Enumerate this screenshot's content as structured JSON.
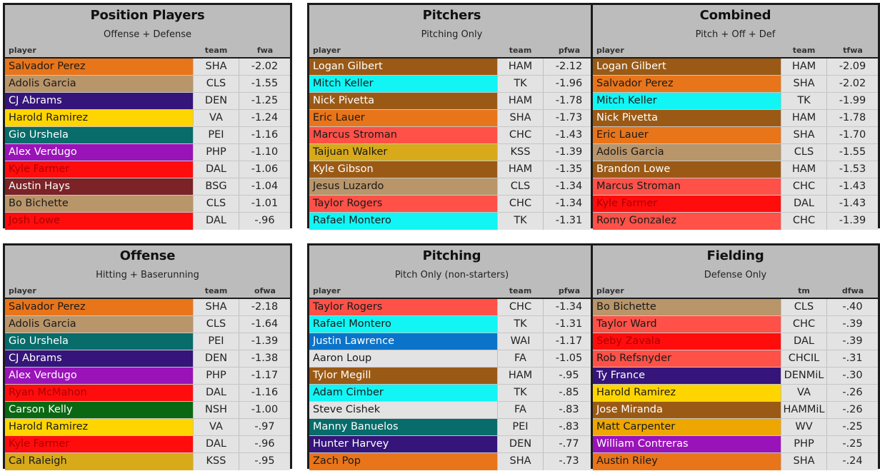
{
  "teams": {
    "SHA": {
      "bg": "#e8751a",
      "fg": "#1a1a1a"
    },
    "CLS": {
      "bg": "#b9956a",
      "fg": "#1a1a1a"
    },
    "DEN": {
      "bg": "#35157a",
      "fg": "#ffffff"
    },
    "VA": {
      "bg": "#ffd500",
      "fg": "#1a1a1a"
    },
    "PEI": {
      "bg": "#076c6a",
      "fg": "#ffffff"
    },
    "PHP": {
      "bg": "#9a13b9",
      "fg": "#ffffff"
    },
    "DAL": {
      "bg": "#ff0d0d",
      "fg": "#b00000"
    },
    "BSG": {
      "bg": "#7b2326",
      "fg": "#ffffff"
    },
    "HAM": {
      "bg": "#9a5a16",
      "fg": "#ffffff"
    },
    "TK": {
      "bg": "#11f5f5",
      "fg": "#1a1a1a"
    },
    "CHC": {
      "bg": "#ff5148",
      "fg": "#1a1a1a"
    },
    "KSS": {
      "bg": "#d8aa19",
      "fg": "#1a1a1a"
    },
    "NSH": {
      "bg": "#0b6812",
      "fg": "#ffffff"
    },
    "WAI": {
      "bg": "#0b73c9",
      "fg": "#ffffff"
    },
    "FA": {
      "bg": "#e3e3e3",
      "fg": "#1a1a1a"
    },
    "CHCIL": {
      "bg": "#ff5148",
      "fg": "#1a1a1a"
    },
    "DENMiL": {
      "bg": "#35157a",
      "fg": "#ffffff"
    },
    "HAMMiL": {
      "bg": "#9a5a16",
      "fg": "#ffffff"
    },
    "WV": {
      "bg": "#eea600",
      "fg": "#1a1a1a"
    }
  },
  "panels": [
    {
      "title": "Position Players",
      "subtitle": "Offense + Defense",
      "col_player": "player",
      "col_team": "team",
      "col_value": "fwa",
      "rows": [
        {
          "name": "Salvador Perez",
          "team": "SHA",
          "value": "-2.02"
        },
        {
          "name": "Adolis Garcia",
          "team": "CLS",
          "value": "-1.55"
        },
        {
          "name": "CJ Abrams",
          "team": "DEN",
          "value": "-1.25"
        },
        {
          "name": "Harold Ramirez",
          "team": "VA",
          "value": "-1.24"
        },
        {
          "name": "Gio Urshela",
          "team": "PEI",
          "value": "-1.16"
        },
        {
          "name": "Alex Verdugo",
          "team": "PHP",
          "value": "-1.10"
        },
        {
          "name": "Kyle Farmer",
          "team": "DAL",
          "value": "-1.06"
        },
        {
          "name": "Austin Hays",
          "team": "BSG",
          "value": "-1.04"
        },
        {
          "name": "Bo Bichette",
          "team": "CLS",
          "value": "-1.01"
        },
        {
          "name": "Josh Lowe",
          "team": "DAL",
          "value": "-.96"
        }
      ]
    },
    {
      "title": "Pitchers",
      "subtitle": "Pitching Only",
      "col_player": "player",
      "col_team": "team",
      "col_value": "pfwa",
      "rows": [
        {
          "name": "Logan Gilbert",
          "team": "HAM",
          "value": "-2.12"
        },
        {
          "name": "Mitch Keller",
          "team": "TK",
          "value": "-1.96"
        },
        {
          "name": "Nick Pivetta",
          "team": "HAM",
          "value": "-1.78"
        },
        {
          "name": "Eric Lauer",
          "team": "SHA",
          "value": "-1.73"
        },
        {
          "name": "Marcus Stroman",
          "team": "CHC",
          "value": "-1.43"
        },
        {
          "name": "Taijuan Walker",
          "team": "KSS",
          "value": "-1.39"
        },
        {
          "name": "Kyle Gibson",
          "team": "HAM",
          "value": "-1.35"
        },
        {
          "name": "Jesus Luzardo",
          "team": "CLS",
          "value": "-1.34"
        },
        {
          "name": "Taylor Rogers",
          "team": "CHC",
          "value": "-1.34"
        },
        {
          "name": "Rafael Montero",
          "team": "TK",
          "value": "-1.31"
        }
      ]
    },
    {
      "title": "Combined",
      "subtitle": "Pitch + Off + Def",
      "col_player": "player",
      "col_team": "team",
      "col_value": "tfwa",
      "rows": [
        {
          "name": "Logan Gilbert",
          "team": "HAM",
          "value": "-2.09"
        },
        {
          "name": "Salvador Perez",
          "team": "SHA",
          "value": "-2.02"
        },
        {
          "name": "Mitch Keller",
          "team": "TK",
          "value": "-1.99"
        },
        {
          "name": "Nick Pivetta",
          "team": "HAM",
          "value": "-1.78"
        },
        {
          "name": "Eric Lauer",
          "team": "SHA",
          "value": "-1.70"
        },
        {
          "name": "Adolis Garcia",
          "team": "CLS",
          "value": "-1.55"
        },
        {
          "name": "Brandon Lowe",
          "team": "HAM",
          "value": "-1.53"
        },
        {
          "name": "Marcus Stroman",
          "team": "CHC",
          "value": "-1.43"
        },
        {
          "name": "Kyle Farmer",
          "team": "DAL",
          "value": "-1.43"
        },
        {
          "name": "Romy Gonzalez",
          "team": "CHC",
          "value": "-1.39"
        }
      ]
    },
    {
      "title": "Offense",
      "subtitle": "Hitting + Baserunning",
      "col_player": "player",
      "col_team": "team",
      "col_value": "ofwa",
      "rows": [
        {
          "name": "Salvador Perez",
          "team": "SHA",
          "value": "-2.18"
        },
        {
          "name": "Adolis Garcia",
          "team": "CLS",
          "value": "-1.64"
        },
        {
          "name": "Gio Urshela",
          "team": "PEI",
          "value": "-1.39"
        },
        {
          "name": "CJ Abrams",
          "team": "DEN",
          "value": "-1.38"
        },
        {
          "name": "Alex Verdugo",
          "team": "PHP",
          "value": "-1.17"
        },
        {
          "name": "Ryan McMahon",
          "team": "DAL",
          "value": "-1.16"
        },
        {
          "name": "Carson Kelly",
          "team": "NSH",
          "value": "-1.00"
        },
        {
          "name": "Harold Ramirez",
          "team": "VA",
          "value": "-.97"
        },
        {
          "name": "Kyle Farmer",
          "team": "DAL",
          "value": "-.96"
        },
        {
          "name": "Cal Raleigh",
          "team": "KSS",
          "value": "-.95"
        }
      ]
    },
    {
      "title": "Pitching",
      "subtitle": "Pitch Only (non-starters)",
      "col_player": "player",
      "col_team": "team",
      "col_value": "pfwa",
      "rows": [
        {
          "name": "Taylor Rogers",
          "team": "CHC",
          "value": "-1.34"
        },
        {
          "name": "Rafael Montero",
          "team": "TK",
          "value": "-1.31"
        },
        {
          "name": "Justin Lawrence",
          "team": "WAI",
          "value": "-1.17"
        },
        {
          "name": "Aaron Loup",
          "team": "FA",
          "value": "-1.05"
        },
        {
          "name": "Tylor Megill",
          "team": "HAM",
          "value": "-.95"
        },
        {
          "name": "Adam Cimber",
          "team": "TK",
          "value": "-.85"
        },
        {
          "name": "Steve Cishek",
          "team": "FA",
          "value": "-.83"
        },
        {
          "name": "Manny Banuelos",
          "team": "PEI",
          "value": "-.83"
        },
        {
          "name": "Hunter Harvey",
          "team": "DEN",
          "value": "-.77"
        },
        {
          "name": "Zach Pop",
          "team": "SHA",
          "value": "-.73"
        }
      ]
    },
    {
      "title": "Fielding",
      "subtitle": "Defense Only",
      "col_player": "player",
      "col_team": "tm",
      "col_value": "dfwa",
      "rows": [
        {
          "name": "Bo Bichette",
          "team": "CLS",
          "value": "-.40"
        },
        {
          "name": "Taylor Ward",
          "team": "CHC",
          "value": "-.39"
        },
        {
          "name": "Seby Zavala",
          "team": "DAL",
          "value": "-.39"
        },
        {
          "name": "Rob Refsnyder",
          "team": "CHCIL",
          "value": "-.31"
        },
        {
          "name": "Ty France",
          "team": "DENMiL",
          "value": "-.30"
        },
        {
          "name": "Harold Ramirez",
          "team": "VA",
          "value": "-.26"
        },
        {
          "name": "Jose Miranda",
          "team": "HAMMiL",
          "value": "-.26"
        },
        {
          "name": "Matt Carpenter",
          "team": "WV",
          "value": "-.25"
        },
        {
          "name": "William Contreras",
          "team": "PHP",
          "value": "-.25"
        },
        {
          "name": "Austin Riley",
          "team": "SHA",
          "value": "-.24"
        }
      ]
    }
  ]
}
